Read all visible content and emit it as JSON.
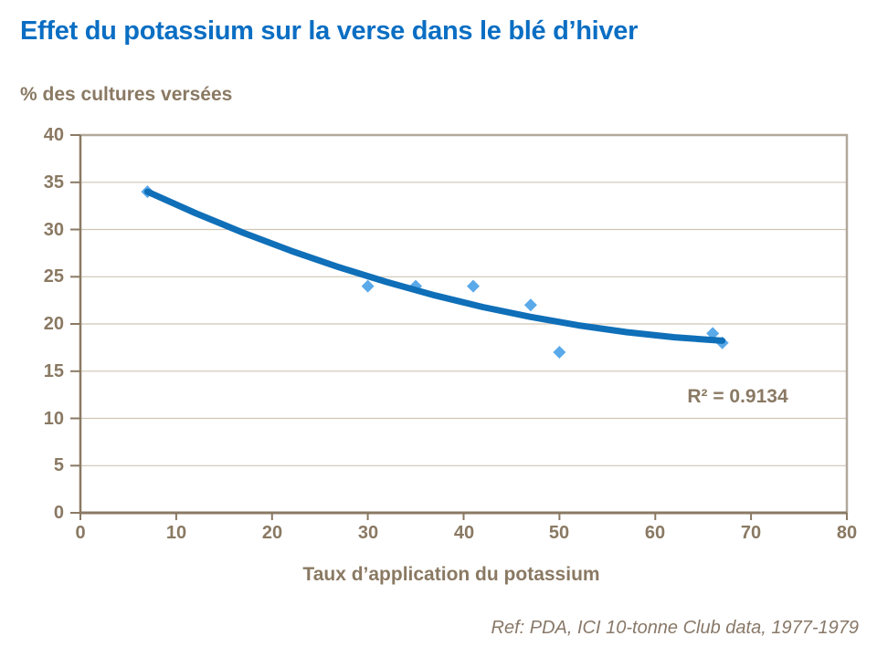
{
  "page": {
    "title": "Effet du potassium sur la verse dans le blé d’hiver",
    "reference": "Ref: PDA, ICI 10-tonne Club data, 1977-1979"
  },
  "chart_data": {
    "type": "scatter",
    "title": "Effet du potassium sur la verse dans le blé d’hiver",
    "y_unit_label": "% des cultures versées",
    "xlabel": "Taux d’application du potassium",
    "ylabel": "% des cultures versées",
    "xlim": [
      0,
      80
    ],
    "ylim": [
      0,
      40
    ],
    "x_ticks": [
      0,
      10,
      20,
      30,
      40,
      50,
      60,
      70,
      80
    ],
    "y_ticks": [
      0,
      5,
      10,
      15,
      20,
      25,
      30,
      35,
      40
    ],
    "grid": "horizontal",
    "legend": "none",
    "series": [
      {
        "name": "observations",
        "marker": "diamond",
        "points": [
          [
            7,
            34
          ],
          [
            30,
            24
          ],
          [
            35,
            24
          ],
          [
            41,
            24
          ],
          [
            47,
            22
          ],
          [
            50,
            17
          ],
          [
            66,
            19
          ],
          [
            67,
            18
          ]
        ]
      }
    ],
    "trendline": {
      "r_squared_label": "R² = 0.9134",
      "points": [
        [
          7,
          34.0
        ],
        [
          12,
          31.74
        ],
        [
          17,
          29.65
        ],
        [
          22,
          27.74
        ],
        [
          27,
          26.0
        ],
        [
          32,
          24.43
        ],
        [
          37,
          23.02
        ],
        [
          42,
          21.79
        ],
        [
          47,
          20.74
        ],
        [
          52,
          19.85
        ],
        [
          57,
          19.13
        ],
        [
          62,
          18.59
        ],
        [
          67,
          18.22
        ]
      ]
    },
    "colors": {
      "title_blue": "#0a6ec3",
      "axis_brown": "#8a7963",
      "gridline": "#cfc5b4",
      "frame_gray": "#b2a89b",
      "trendline_blue": "#0f6fb8",
      "marker_blue": "#5aa9e9",
      "reference_brown": "#887868"
    }
  }
}
